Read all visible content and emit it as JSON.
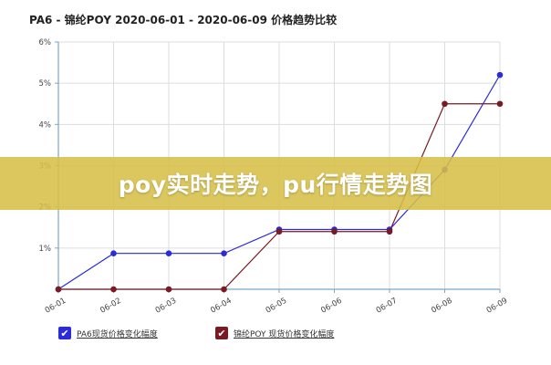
{
  "chart_data": {
    "type": "line",
    "title": "PA6 - 锦纶POY 2020-06-01 - 2020-06-09 价格趋势比较",
    "categories": [
      "06-01",
      "06-02",
      "06-03",
      "06-04",
      "06-05",
      "06-06",
      "06-07",
      "06-08",
      "06-09"
    ],
    "ylim": [
      0,
      6
    ],
    "y_ticks": [
      "6%",
      "5%",
      "4%",
      "3%",
      "2%",
      "1%"
    ],
    "series": [
      {
        "name": "PA6现货价格变化幅度",
        "color": "#2b2bd9",
        "values": [
          0,
          0.87,
          0.87,
          0.87,
          1.45,
          1.45,
          1.45,
          2.9,
          5.2
        ]
      },
      {
        "name": "锦纶POY 现货价格变化幅度",
        "color": "#7a1a22",
        "values": [
          0,
          0,
          0,
          0,
          1.4,
          1.4,
          1.4,
          4.5,
          4.5
        ]
      }
    ],
    "grid": true,
    "legend_position": "bottom"
  },
  "banner": {
    "text": "poy实时走势，pu行情走势图"
  },
  "colors": {
    "banner_bg": "#d6bf47",
    "axis": "#7aa7c7",
    "grid": "#dddddd"
  }
}
